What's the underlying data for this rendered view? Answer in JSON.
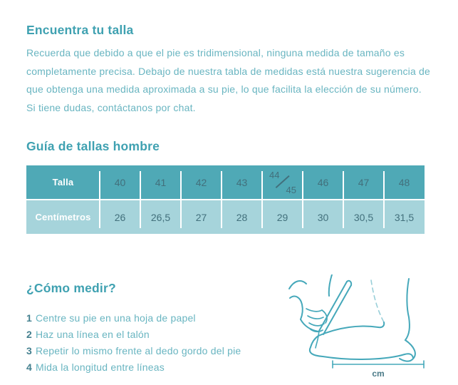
{
  "colors": {
    "heading": "#3fa1b1",
    "body_text": "#69b5c1",
    "step_number": "#44808f",
    "table_header_bg": "#4fa9b6",
    "table_row_bg": "#a6d4db",
    "table_text": "#42707c",
    "illustration_stroke": "#45a8ba"
  },
  "find_size": {
    "title": "Encuentra tu talla",
    "description_lines": [
      "Recuerda que debido a que el pie es tridimensional, ninguna medida de tamaño es",
      "completamente precisa. Debajo de nuestra tabla de medidas está nuestra sugerencia de",
      "que obtenga una medida aproximada a su pie, lo que facilita la elección de su número.",
      "Si tiene dudas, contáctanos por chat."
    ]
  },
  "size_guide": {
    "title": "Guía de tallas hombre",
    "table": {
      "size_label": "Talla",
      "cm_label": "Centímetros",
      "sizes": [
        "40",
        "41",
        "42",
        "43",
        "44/45",
        "46",
        "47",
        "48"
      ],
      "centimeters": [
        "26",
        "26,5",
        "27",
        "28",
        "29",
        "30",
        "30,5",
        "31,5"
      ]
    }
  },
  "how_to_measure": {
    "title": "¿Cómo medir?",
    "steps": [
      {
        "num": "1",
        "text": "Centre su pie en una hoja de papel"
      },
      {
        "num": "2",
        "text": "Haz una línea en el talón"
      },
      {
        "num": "3",
        "text": "Repetir lo mismo frente al dedo gordo del pie"
      },
      {
        "num": "4",
        "text": "Mida la longitud entre líneas"
      }
    ],
    "unit_label": "cm"
  }
}
